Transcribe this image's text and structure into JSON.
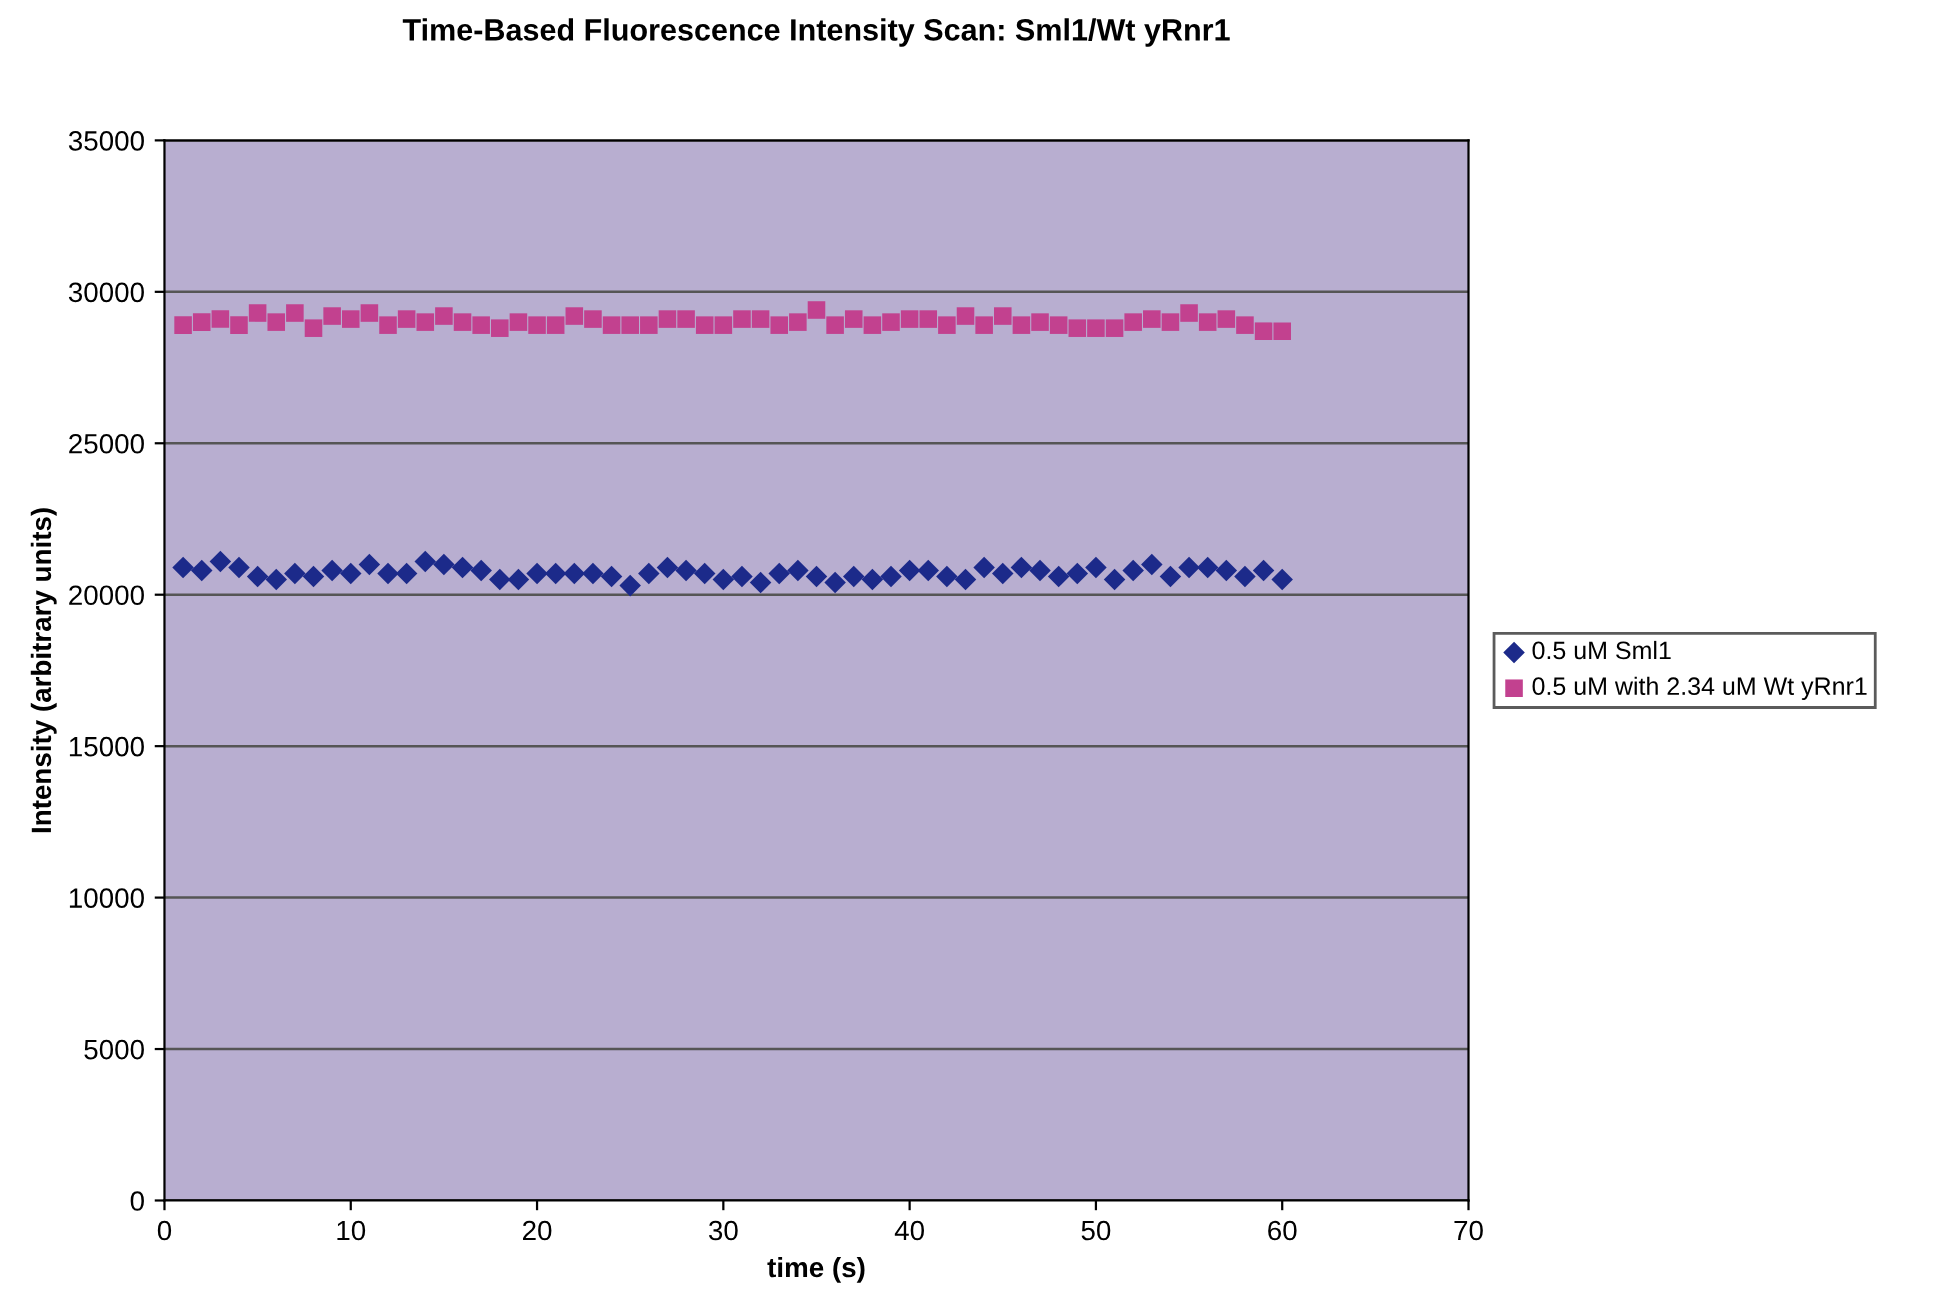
{
  "chart_data": {
    "type": "scatter",
    "title": "Time-Based Fluorescence Intensity Scan: Sml1/Wt yRnr1",
    "xlabel": "time (s)",
    "ylabel": "Intensity (arbitrary units)",
    "x": [
      1,
      2,
      3,
      4,
      5,
      6,
      7,
      8,
      9,
      10,
      11,
      12,
      13,
      14,
      15,
      16,
      17,
      18,
      19,
      20,
      21,
      22,
      23,
      24,
      25,
      26,
      27,
      28,
      29,
      30,
      31,
      32,
      33,
      34,
      35,
      36,
      37,
      38,
      39,
      40,
      41,
      42,
      43,
      44,
      45,
      46,
      47,
      48,
      49,
      50,
      51,
      52,
      53,
      54,
      55,
      56,
      57,
      58,
      59,
      60
    ],
    "series": [
      {
        "name": "0.5 uM Sml1",
        "color": "#1c2a8a",
        "marker": "diamond",
        "values": [
          20900,
          20800,
          21100,
          20900,
          20600,
          20500,
          20700,
          20600,
          20800,
          20700,
          21000,
          20700,
          20700,
          21100,
          21000,
          20900,
          20800,
          20500,
          20500,
          20700,
          20700,
          20700,
          20700,
          20600,
          20300,
          20700,
          20900,
          20800,
          20700,
          20500,
          20600,
          20400,
          20700,
          20800,
          20600,
          20400,
          20600,
          20500,
          20600,
          20800,
          20800,
          20600,
          20500,
          20900,
          20700,
          20900,
          20800,
          20600,
          20700,
          20900,
          20500,
          20800,
          21000,
          20600,
          20900,
          20900,
          20800,
          20600,
          20800,
          20500
        ]
      },
      {
        "name": "0.5 uM with 2.34 uM Wt yRnr1",
        "color": "#c2418f",
        "marker": "square",
        "values": [
          28900,
          29000,
          29100,
          28900,
          29300,
          29000,
          29300,
          28800,
          29200,
          29100,
          29300,
          28900,
          29100,
          29000,
          29200,
          29000,
          28900,
          28800,
          29000,
          28900,
          28900,
          29200,
          29100,
          28900,
          28900,
          28900,
          29100,
          29100,
          28900,
          28900,
          29100,
          29100,
          28900,
          29000,
          29400,
          28900,
          29100,
          28900,
          29000,
          29100,
          29100,
          28900,
          29200,
          28900,
          29200,
          28900,
          29000,
          28900,
          28800,
          28800,
          28800,
          29000,
          29100,
          29000,
          29300,
          29000,
          29100,
          28900,
          28700,
          28700
        ]
      }
    ],
    "xlim": [
      0,
      70
    ],
    "xticks": [
      0,
      10,
      20,
      30,
      40,
      50,
      60,
      70
    ],
    "ylim": [
      0,
      35000
    ],
    "yticks": [
      0,
      5000,
      10000,
      15000,
      20000,
      25000,
      30000,
      35000
    ],
    "grid": "y",
    "legend": "right"
  }
}
